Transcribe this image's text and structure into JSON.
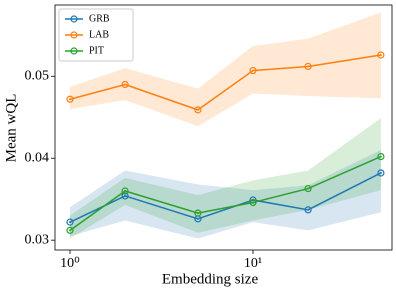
{
  "chart_data": {
    "type": "line",
    "xlabel": "Embedding size",
    "ylabel": "Mean wQL",
    "x": [
      1,
      2,
      5,
      10,
      20,
      50
    ],
    "xscale": "log",
    "xlim": [
      0.828,
      57.5
    ],
    "xticks": [
      {
        "value": 1,
        "label": "10⁰"
      },
      {
        "value": 10,
        "label": "10¹"
      }
    ],
    "ylim": [
      0.0288,
      0.0587
    ],
    "yticks": [
      0.03,
      0.04,
      0.05
    ],
    "legend": "upper left",
    "series": [
      {
        "name": "GRB",
        "color": "#1f77b4",
        "values": [
          0.0322,
          0.0354,
          0.0326,
          0.0349,
          0.0337,
          0.0382
        ],
        "lower": [
          0.0305,
          0.0324,
          0.0302,
          0.0322,
          0.0312,
          0.0334
        ],
        "upper": [
          0.034,
          0.0385,
          0.0368,
          0.0361,
          0.0367,
          0.041
        ]
      },
      {
        "name": "LAB",
        "color": "#ff7f0e",
        "values": [
          0.0472,
          0.049,
          0.0459,
          0.0507,
          0.0512,
          0.0526
        ],
        "lower": [
          0.046,
          0.0471,
          0.0439,
          0.0479,
          0.0476,
          0.0473
        ],
        "upper": [
          0.0487,
          0.051,
          0.0485,
          0.0537,
          0.0546,
          0.0578
        ]
      },
      {
        "name": "PIT",
        "color": "#2ca02c",
        "values": [
          0.0312,
          0.036,
          0.0333,
          0.0346,
          0.0363,
          0.0402
        ],
        "lower": [
          0.0302,
          0.0343,
          0.0309,
          0.0324,
          0.0337,
          0.0361
        ],
        "upper": [
          0.033,
          0.0376,
          0.0355,
          0.0373,
          0.0385,
          0.0449
        ]
      }
    ]
  }
}
